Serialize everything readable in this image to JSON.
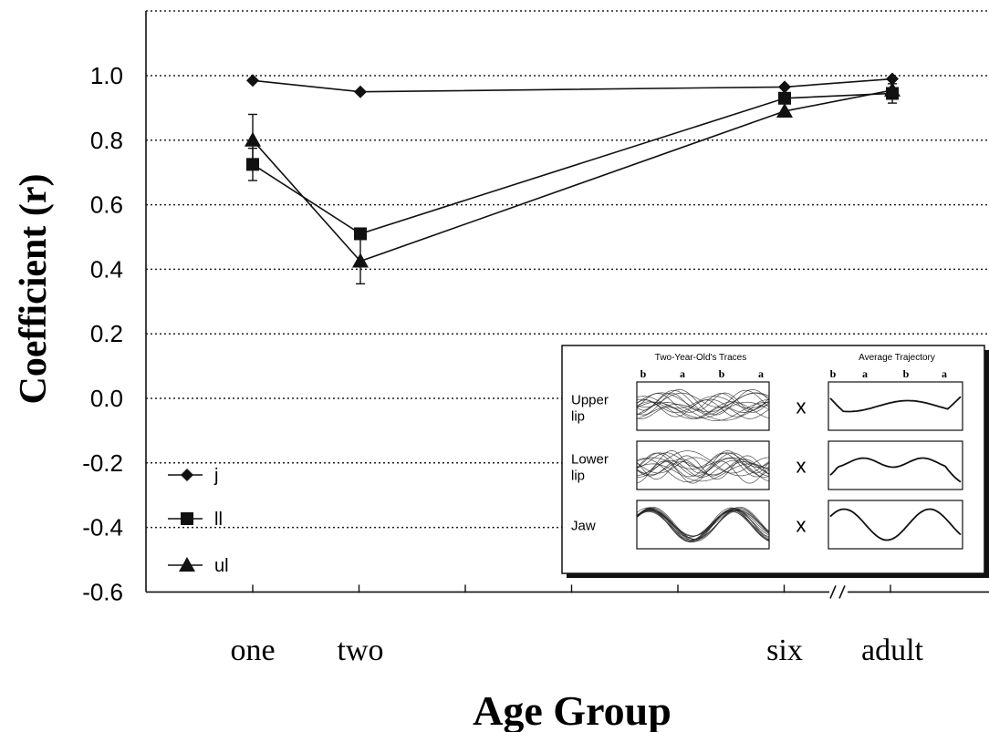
{
  "chart_data": {
    "type": "line",
    "xlabel": "Age Group",
    "ylabel": "Coefficient (r)",
    "ylim": [
      -0.6,
      1.2
    ],
    "yticks": [
      "1.0",
      "0.8",
      "0.6",
      "0.4",
      "0.2",
      "0.0",
      "-0.2",
      "-0.4",
      "-0.6"
    ],
    "categories": [
      "one",
      "two",
      "six",
      "adult"
    ],
    "axis_break": "//",
    "grid": "horizontal dotted",
    "legend_position": "bottom-left",
    "series": [
      {
        "name": "j",
        "marker": "diamond",
        "values": [
          0.985,
          0.95,
          0.965,
          0.99
        ],
        "errors": [
          0,
          0,
          0,
          0
        ]
      },
      {
        "name": "ll",
        "marker": "square",
        "values": [
          0.725,
          0.51,
          0.93,
          0.945
        ],
        "errors": [
          0.05,
          0,
          0,
          0.03
        ]
      },
      {
        "name": "ul",
        "marker": "triangle",
        "values": [
          0.8,
          0.425,
          0.89,
          0.955
        ],
        "errors": [
          0.08,
          0.07,
          0,
          0
        ]
      }
    ],
    "inset": {
      "left_title": "Two-Year-Old's Traces",
      "right_title": "Average Trajectory",
      "tick_letters": [
        "b",
        "a",
        "b",
        "a"
      ],
      "rows": [
        {
          "label_line1": "Upper",
          "label_line2": "lip",
          "op": "x"
        },
        {
          "label_line1": "Lower",
          "label_line2": "lip",
          "op": "x"
        },
        {
          "label_line1": "Jaw",
          "label_line2": "",
          "op": "x"
        }
      ]
    }
  }
}
